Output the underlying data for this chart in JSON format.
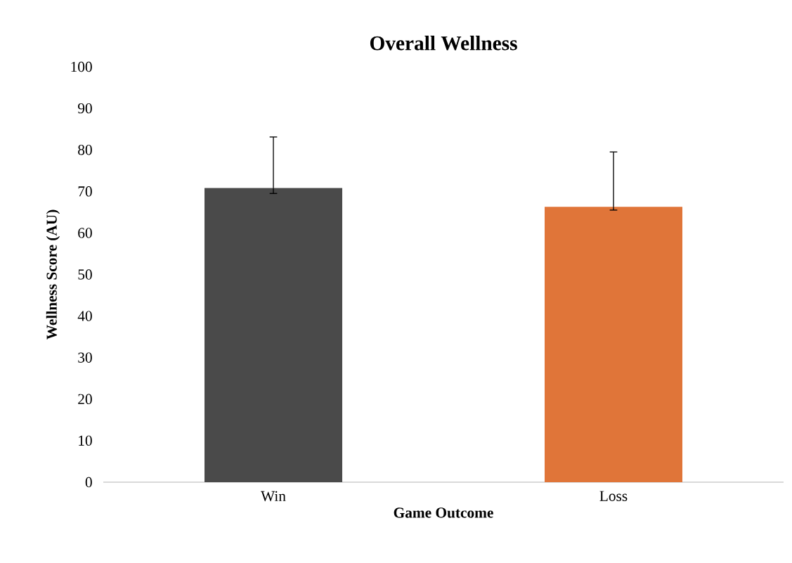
{
  "chart_data": {
    "type": "bar",
    "title": "Overall Wellness",
    "xlabel": "Game Outcome",
    "ylabel": "Wellness Score (AU)",
    "categories": [
      "Win",
      "Loss"
    ],
    "values": [
      70.8,
      66.3
    ],
    "colors": [
      "#4a4a4a",
      "#e07539"
    ],
    "errors": [
      [
        69.5,
        83.1
      ],
      [
        65.5,
        79.5
      ]
    ],
    "ylim": [
      0,
      100
    ],
    "yticks": [
      0,
      10,
      20,
      30,
      40,
      50,
      60,
      70,
      80,
      90,
      100
    ]
  }
}
